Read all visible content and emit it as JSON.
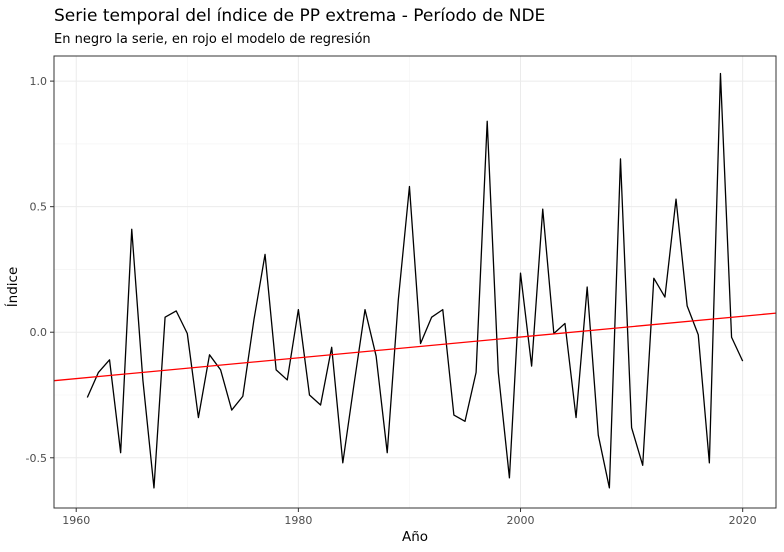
{
  "chart_data": {
    "type": "line",
    "title": "Serie temporal del índice de PP extrema - Período de NDE",
    "subtitle": "En negro la serie, en rojo el modelo de regresión",
    "xlabel": "Año",
    "ylabel": "Índice",
    "xlim": [
      1958,
      2023
    ],
    "ylim": [
      -0.7,
      1.1
    ],
    "x_ticks": [
      1960,
      1980,
      2000,
      2020
    ],
    "y_ticks": [
      -0.5,
      0.0,
      0.5,
      1.0
    ],
    "x_tick_labels": [
      "1960",
      "1980",
      "2000",
      "2020"
    ],
    "y_tick_labels": [
      "-0.5",
      "0.0",
      "0.5",
      "1.0"
    ],
    "grid": true,
    "series": [
      {
        "color": "#000000",
        "x": [
          1961,
          1962,
          1963,
          1964,
          1965,
          1966,
          1967,
          1968,
          1969,
          1970,
          1971,
          1972,
          1973,
          1974,
          1975,
          1976,
          1977,
          1978,
          1979,
          1980,
          1981,
          1982,
          1983,
          1984,
          1985,
          1986,
          1987,
          1988,
          1989,
          1990,
          1991,
          1992,
          1993,
          1994,
          1995,
          1996,
          1997,
          1998,
          1999,
          2000,
          2001,
          2002,
          2003,
          2004,
          2005,
          2006,
          2007,
          2008,
          2009,
          2010,
          2011,
          2012,
          2013,
          2014,
          2015,
          2016,
          2017,
          2018,
          2019,
          2020
        ],
        "values": [
          -0.26,
          -0.16,
          -0.11,
          -0.48,
          0.41,
          -0.19,
          -0.62,
          0.06,
          0.085,
          -0.005,
          -0.34,
          -0.09,
          -0.15,
          -0.31,
          -0.255,
          0.05,
          0.31,
          -0.15,
          -0.19,
          0.09,
          -0.25,
          -0.29,
          -0.06,
          -0.52,
          -0.21,
          0.09,
          -0.095,
          -0.48,
          0.13,
          0.58,
          -0.045,
          0.06,
          0.09,
          -0.33,
          -0.355,
          -0.16,
          0.84,
          -0.16,
          -0.58,
          0.235,
          -0.135,
          0.49,
          -0.005,
          0.035,
          -0.34,
          0.18,
          -0.41,
          -0.62,
          0.69,
          -0.38,
          -0.53,
          0.215,
          0.14,
          0.53,
          0.105,
          -0.01,
          -0.52,
          1.03,
          -0.02,
          -0.115
        ]
      },
      {
        "color": "#ff0000",
        "x": [
          1958,
          2023
        ],
        "values": [
          -0.193,
          0.076
        ]
      }
    ]
  }
}
